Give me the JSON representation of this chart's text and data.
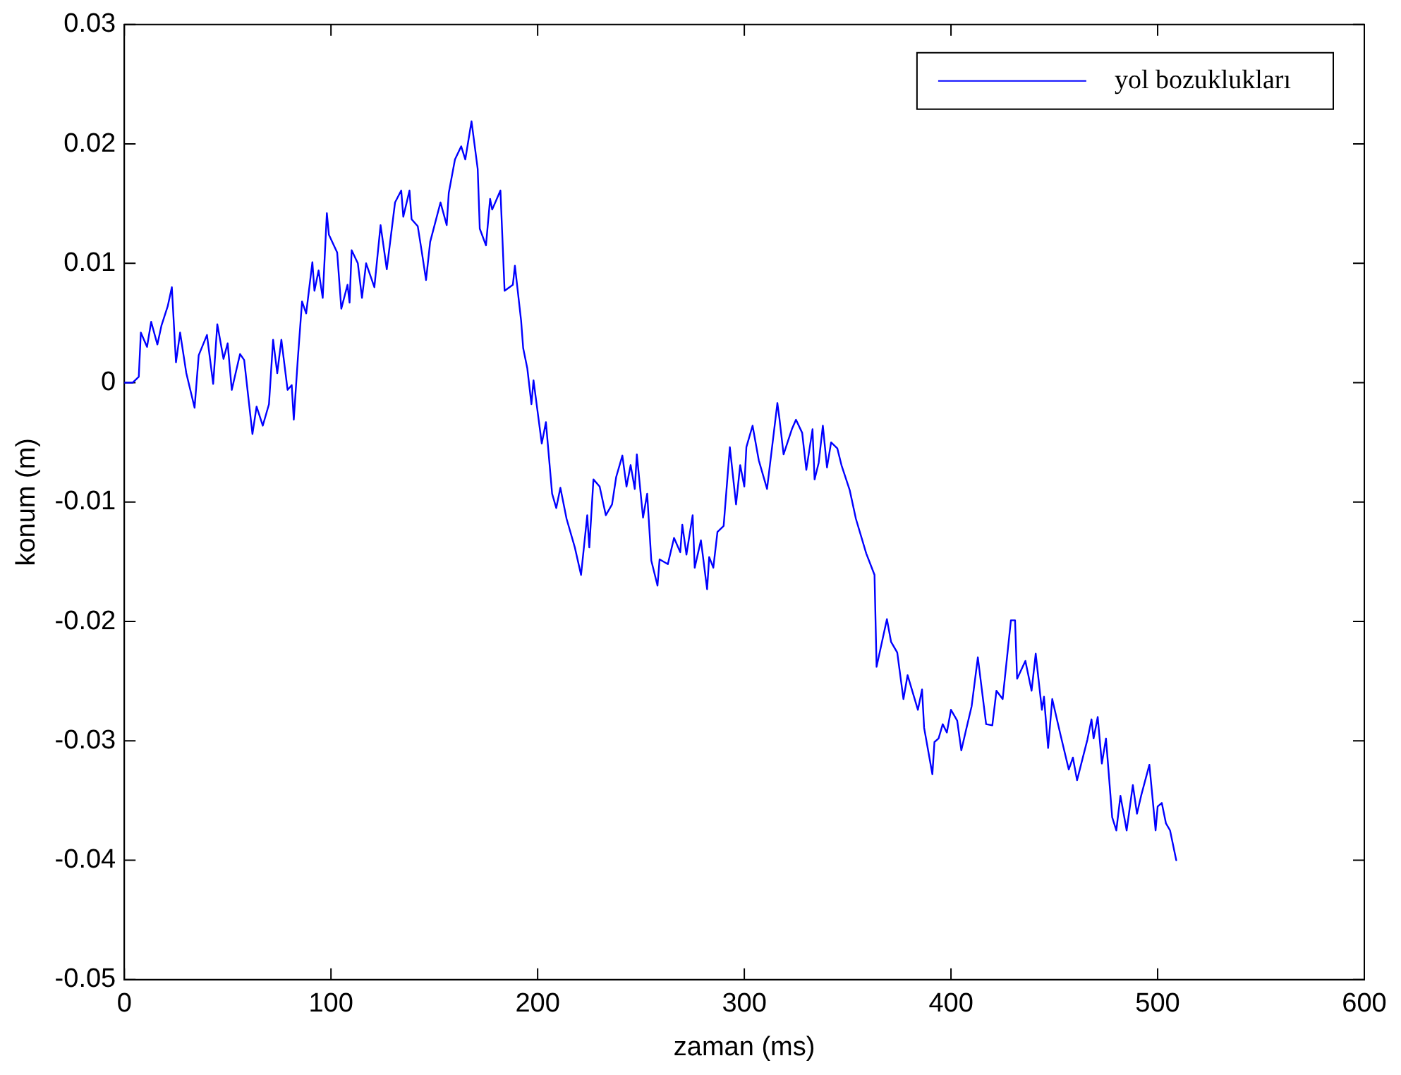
{
  "chart_data": {
    "type": "line",
    "xlabel": "zaman (ms)",
    "ylabel": "konum (m)",
    "xlim": [
      0,
      600
    ],
    "xticks": [
      0,
      100,
      200,
      300,
      400,
      500,
      600
    ],
    "ylim": [
      -0.05,
      0.03
    ],
    "yticks": [
      -0.05,
      -0.04,
      -0.03,
      -0.02,
      -0.01,
      0,
      0.01,
      0.02,
      0.03
    ],
    "grid": false,
    "legend": "top right",
    "marker": "none",
    "line_style": "solid",
    "series": [
      {
        "name": "yol bozuklukları",
        "color": "#0000ff",
        "x": [
          0,
          4,
          7,
          8,
          11,
          13,
          16,
          18,
          21,
          23,
          25,
          27,
          30,
          34,
          36,
          40,
          43,
          45,
          48,
          50,
          52,
          56,
          58,
          62,
          64,
          67,
          70,
          72,
          74,
          76,
          79,
          81,
          82,
          84,
          86,
          88,
          91,
          92,
          94,
          96,
          98,
          99,
          103,
          105,
          108,
          109,
          110,
          113,
          115,
          117,
          121,
          124,
          127,
          131,
          134,
          135,
          138,
          139,
          142,
          144,
          146,
          148,
          153,
          156,
          157,
          160,
          163,
          165,
          168,
          171,
          172,
          175,
          177,
          178,
          182,
          184,
          188,
          189,
          192,
          193,
          195,
          197,
          198,
          202,
          204,
          207,
          209,
          211,
          214,
          218,
          221,
          224,
          225,
          227,
          230,
          233,
          236,
          238,
          241,
          243,
          245,
          247,
          248,
          251,
          253,
          255,
          258,
          259,
          263,
          266,
          269,
          270,
          272,
          275,
          276,
          279,
          282,
          283,
          285,
          287,
          290,
          293,
          296,
          298,
          300,
          301,
          304,
          307,
          311,
          316,
          317,
          319,
          323,
          325,
          328,
          330,
          333,
          334,
          336,
          338,
          340,
          342,
          345,
          347,
          351,
          354,
          359,
          363,
          364,
          369,
          371,
          374,
          377,
          379,
          384,
          386,
          387,
          391,
          392,
          394,
          396,
          398,
          400,
          403,
          405,
          407,
          410,
          413,
          417,
          420,
          422,
          425,
          429,
          431,
          432,
          436,
          439,
          441,
          444,
          445,
          447,
          449,
          453,
          457,
          459,
          461,
          466,
          468,
          469,
          471,
          473,
          475,
          478,
          480,
          482,
          485,
          488,
          490,
          492,
          496,
          499,
          500,
          502,
          504,
          506,
          509
        ],
        "values": [
          0,
          0,
          0.0005,
          0.0042,
          0.003,
          0.0051,
          0.0032,
          0.0048,
          0.0064,
          0.008,
          0.0017,
          0.0042,
          0.0008,
          -0.0021,
          0.0023,
          0.004,
          -0.0001,
          0.0049,
          0.002,
          0.0033,
          -0.0006,
          0.0024,
          0.0019,
          -0.0043,
          -0.002,
          -0.0036,
          -0.0018,
          0.0036,
          0.0008,
          0.0036,
          -0.0006,
          -0.0002,
          -0.0031,
          0.0021,
          0.0068,
          0.0058,
          0.0101,
          0.0077,
          0.0094,
          0.0071,
          0.0142,
          0.0124,
          0.0109,
          0.0062,
          0.0082,
          0.0067,
          0.0111,
          0.01,
          0.0071,
          0.01,
          0.008,
          0.0132,
          0.0095,
          0.0151,
          0.0161,
          0.0139,
          0.0161,
          0.0137,
          0.0131,
          0.0109,
          0.0086,
          0.0118,
          0.0151,
          0.0132,
          0.0159,
          0.0187,
          0.0198,
          0.0187,
          0.0219,
          0.0179,
          0.0129,
          0.0115,
          0.0154,
          0.0145,
          0.0161,
          0.0077,
          0.0082,
          0.0098,
          0.0052,
          0.0029,
          0.0012,
          -0.0018,
          0.0002,
          -0.0051,
          -0.0033,
          -0.0093,
          -0.0105,
          -0.0088,
          -0.0114,
          -0.0138,
          -0.0161,
          -0.0111,
          -0.0138,
          -0.0081,
          -0.0087,
          -0.0111,
          -0.0102,
          -0.0079,
          -0.0061,
          -0.0087,
          -0.0069,
          -0.0089,
          -0.006,
          -0.0113,
          -0.0093,
          -0.0149,
          -0.017,
          -0.0148,
          -0.0152,
          -0.013,
          -0.0142,
          -0.0119,
          -0.0144,
          -0.0111,
          -0.0155,
          -0.0132,
          -0.0173,
          -0.0146,
          -0.0155,
          -0.0125,
          -0.012,
          -0.0054,
          -0.0102,
          -0.0069,
          -0.0087,
          -0.0054,
          -0.0036,
          -0.0065,
          -0.0089,
          -0.0017,
          -0.003,
          -0.006,
          -0.0039,
          -0.0031,
          -0.0042,
          -0.0073,
          -0.0039,
          -0.0081,
          -0.0067,
          -0.0036,
          -0.0071,
          -0.005,
          -0.0055,
          -0.0069,
          -0.009,
          -0.0114,
          -0.0143,
          -0.0161,
          -0.0238,
          -0.0198,
          -0.0217,
          -0.0226,
          -0.0265,
          -0.0245,
          -0.0274,
          -0.0257,
          -0.0289,
          -0.0328,
          -0.0301,
          -0.0298,
          -0.0286,
          -0.0293,
          -0.0274,
          -0.0283,
          -0.0308,
          -0.0293,
          -0.0271,
          -0.023,
          -0.0286,
          -0.0287,
          -0.0258,
          -0.0265,
          -0.0199,
          -0.0199,
          -0.0248,
          -0.0233,
          -0.0258,
          -0.0227,
          -0.0274,
          -0.0263,
          -0.0306,
          -0.0265,
          -0.0295,
          -0.0324,
          -0.0314,
          -0.0333,
          -0.0299,
          -0.0282,
          -0.0298,
          -0.028,
          -0.0319,
          -0.0298,
          -0.0364,
          -0.0375,
          -0.0346,
          -0.0375,
          -0.0337,
          -0.0361,
          -0.0346,
          -0.032,
          -0.0375,
          -0.0355,
          -0.0352,
          -0.0369,
          -0.0375,
          -0.04
        ]
      }
    ]
  }
}
